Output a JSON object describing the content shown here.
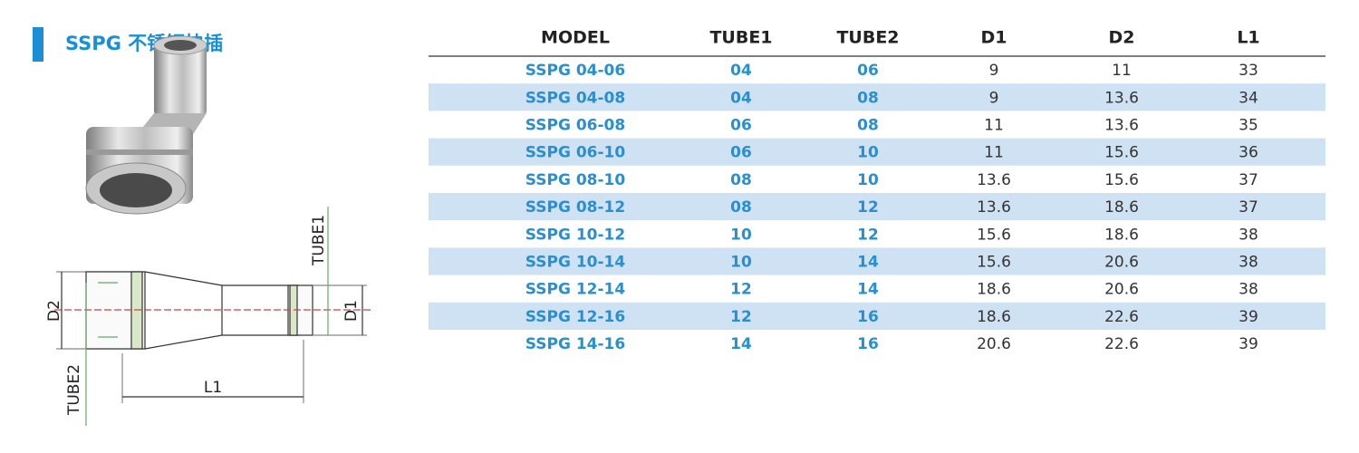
{
  "header": {
    "title": "SSPG 不锈钢快插"
  },
  "diagram": {
    "labels": {
      "d2": "D2",
      "d1": "D1",
      "tube1": "TUBE1",
      "tube2": "TUBE2",
      "l1": "L1"
    }
  },
  "table": {
    "columns": [
      "MODEL",
      "TUBE1",
      "TUBE2",
      "D1",
      "D2",
      "L1"
    ],
    "rows": [
      [
        "SSPG 04-06",
        "04",
        "06",
        "9",
        "11",
        "33"
      ],
      [
        "SSPG 04-08",
        "04",
        "08",
        "9",
        "13.6",
        "34"
      ],
      [
        "SSPG 06-08",
        "06",
        "08",
        "11",
        "13.6",
        "35"
      ],
      [
        "SSPG 06-10",
        "06",
        "10",
        "11",
        "15.6",
        "36"
      ],
      [
        "SSPG 08-10",
        "08",
        "10",
        "13.6",
        "15.6",
        "37"
      ],
      [
        "SSPG 08-12",
        "08",
        "12",
        "13.6",
        "18.6",
        "37"
      ],
      [
        "SSPG 10-12",
        "10",
        "12",
        "15.6",
        "18.6",
        "38"
      ],
      [
        "SSPG 10-14",
        "10",
        "14",
        "15.6",
        "20.6",
        "38"
      ],
      [
        "SSPG 12-14",
        "12",
        "14",
        "18.6",
        "20.6",
        "38"
      ],
      [
        "SSPG 12-16",
        "12",
        "16",
        "18.6",
        "22.6",
        "39"
      ],
      [
        "SSPG 14-16",
        "14",
        "16",
        "20.6",
        "22.6",
        "39"
      ]
    ]
  }
}
